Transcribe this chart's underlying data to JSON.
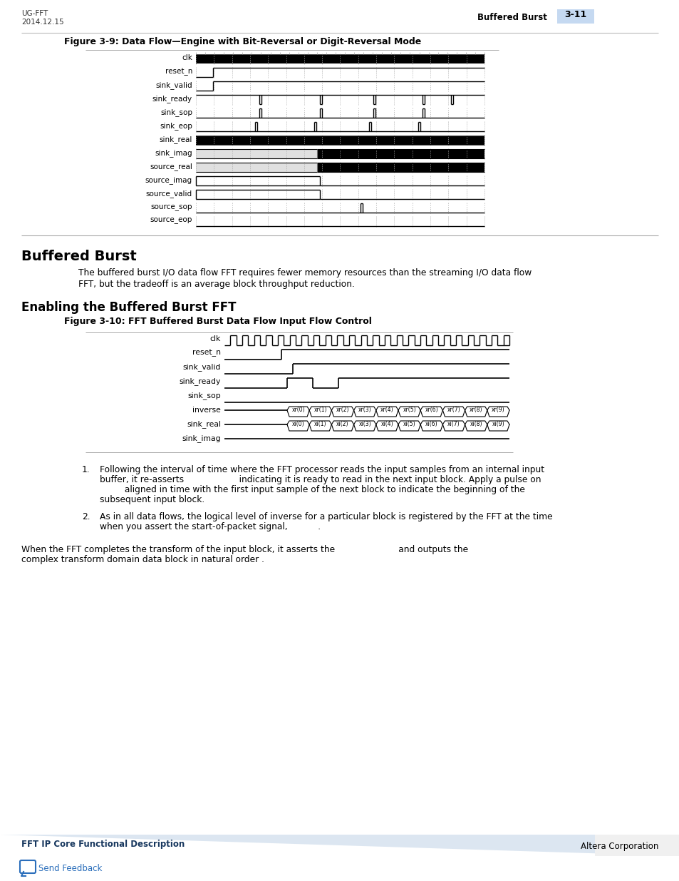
{
  "page_header_left": "UG-FFT\n2014.12.15",
  "page_header_right_text": "Buffered Burst",
  "page_header_right_num": "3-11",
  "page_header_num_bg": "#c5d9f1",
  "fig1_title": "Figure 3-9: Data Flow—Engine with Bit-Reversal or Digit-Reversal Mode",
  "fig1_signals": [
    "clk",
    "reset_n",
    "sink_valid",
    "sink_ready",
    "sink_sop",
    "sink_eop",
    "sink_real",
    "sink_imag",
    "source_real",
    "source_imag",
    "source_valid",
    "source_sop",
    "source_eop"
  ],
  "section1_title": "Buffered Burst",
  "section1_body1": "The buffered burst I/O data flow FFT requires fewer memory resources than the streaming I/O data flow",
  "section1_body2": "FFT, but the tradeoff is an average block throughput reduction.",
  "section2_title": "Enabling the Buffered Burst FFT",
  "fig2_title": "Figure 3-10: FFT Buffered Burst Data Flow Input Flow Control",
  "fig2_signals": [
    "clk",
    "reset_n",
    "sink_valid",
    "sink_ready",
    "sink_sop",
    "inverse",
    "sink_real",
    "sink_imag"
  ],
  "b1_l1": "Following the interval of time where the FFT processor reads the input samples from an internal input",
  "b1_l2": "buffer, it re-asserts                    indicating it is ready to read in the next input block. Apply a pulse on",
  "b1_l3": "         aligned in time with the first input sample of the next block to indicate the beginning of the",
  "b1_l4": "subsequent input block.",
  "b2_l1": "As in all data flows, the logical level of inverse for a particular block is registered by the FFT at the time",
  "b2_l2": "when you assert the start-of-packet signal,           .",
  "fp_l1": "When the FFT completes the transform of the input block, it asserts the                       and outputs the",
  "fp_l2": "complex transform domain data block in natural order .",
  "footer_text": "FFT IP Core Functional Description",
  "footer_right": "Altera Corporation",
  "footer_bg": "#dce6f1",
  "footer_text_color": "#17375e",
  "bg_color": "#ffffff"
}
